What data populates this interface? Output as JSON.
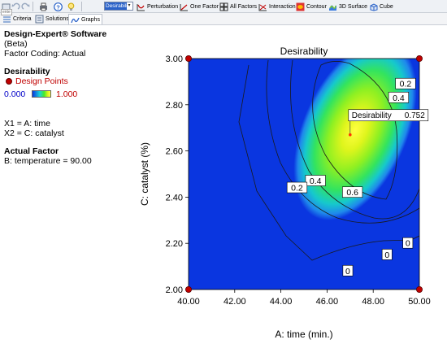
{
  "toolbar": {
    "selected_response": "Desirability",
    "buttons": {
      "perturbation": "Perturbation",
      "one_factor": "One Factor",
      "all_factors": "All Factors",
      "interaction": "Interaction",
      "contour": "Contour",
      "surface_3d": "3D Surface",
      "cube": "Cube"
    }
  },
  "tabs": {
    "criteria": "Criteria",
    "solutions": "Solutions",
    "graphs": "Graphs",
    "tiny_tag": "ente"
  },
  "info": {
    "software": "Design-Expert® Software",
    "beta": "(Beta)",
    "coding": "Factor Coding: Actual",
    "response_title": "Desirability",
    "design_points": "Design Points",
    "legend_min": "0.000",
    "legend_max": "1.000",
    "x1": "X1 = A: time",
    "x2": "X2 = C: catalyst",
    "actual_factor_title": "Actual Factor",
    "actual_factor": "B: temperature = 90.00"
  },
  "colors": {
    "low": "#0a36e0",
    "high": "#ffff40",
    "design_point": "#c00000"
  },
  "chart_data": {
    "type": "heatmap",
    "title": "Desirability",
    "xlabel": "A: time (min.)",
    "ylabel": "C: catalyst (%)",
    "xlim": [
      40.0,
      50.0
    ],
    "ylim": [
      2.0,
      3.0
    ],
    "x_ticks": [
      "40.00",
      "42.00",
      "44.00",
      "46.00",
      "48.00",
      "50.00"
    ],
    "y_ticks": [
      "2.00",
      "2.20",
      "2.40",
      "2.60",
      "2.80",
      "3.00"
    ],
    "contour_levels": [
      0,
      0.2,
      0.4,
      0.6
    ],
    "contour_labels": [
      {
        "text": "0.2",
        "x": 49.4,
        "y": 2.89
      },
      {
        "text": "0.4",
        "x": 49.1,
        "y": 2.83
      },
      {
        "text": "0.6",
        "x": 47.1,
        "y": 2.42
      },
      {
        "text": "0.4",
        "x": 45.5,
        "y": 2.47
      },
      {
        "text": "0.2",
        "x": 44.7,
        "y": 2.44
      },
      {
        "text": "0",
        "x": 49.5,
        "y": 2.2
      },
      {
        "text": "0",
        "x": 48.6,
        "y": 2.15
      },
      {
        "text": "0",
        "x": 46.9,
        "y": 2.08
      }
    ],
    "optimum": {
      "label": "Desirability",
      "value": "0.752",
      "x": 47.0,
      "y": 2.67
    },
    "design_points": [
      [
        40.0,
        2.0
      ],
      [
        50.0,
        2.0
      ],
      [
        40.0,
        3.0
      ],
      [
        50.0,
        3.0
      ]
    ]
  }
}
